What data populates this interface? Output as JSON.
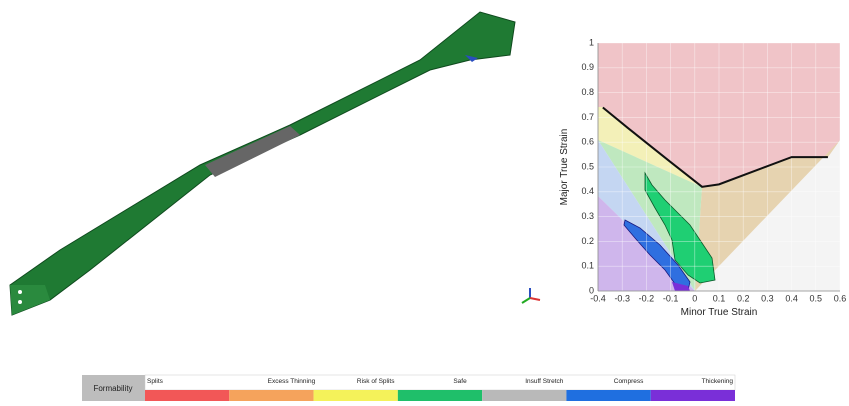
{
  "fld": {
    "x_label": "Minor True Strain",
    "y_label": "Major True Strain",
    "xlim": [
      -0.4,
      0.6
    ],
    "ylim": [
      0,
      1
    ],
    "xticks": [
      -0.4,
      -0.3,
      -0.2,
      -0.1,
      0,
      0.1,
      0.2,
      0.3,
      0.4,
      0.5,
      0.6
    ],
    "yticks": [
      0,
      0.1,
      0.2,
      0.3,
      0.4,
      0.5,
      0.6,
      0.7,
      0.8,
      0.9,
      1
    ],
    "flc": {
      "x": [
        -0.38,
        -0.28,
        -0.1,
        0.03,
        0.1,
        0.4,
        0.55
      ],
      "y": [
        0.74,
        0.66,
        0.52,
        0.42,
        0.43,
        0.54,
        0.54
      ],
      "color": "#111111"
    }
  },
  "legend": {
    "title": "Formability",
    "items": [
      {
        "name": "Splits",
        "color": "#f25757"
      },
      {
        "name": "Excess Thinning",
        "color": "#f5a35c"
      },
      {
        "name": "Risk of Splits",
        "color": "#f4f25a"
      },
      {
        "name": "Safe",
        "color": "#1fbf6a"
      },
      {
        "name": "Insuff Stretch",
        "color": "#b9b9b9"
      },
      {
        "name": "Compress",
        "color": "#1f6fe0"
      },
      {
        "name": "Thickening",
        "color": "#7a2fd8"
      }
    ]
  }
}
